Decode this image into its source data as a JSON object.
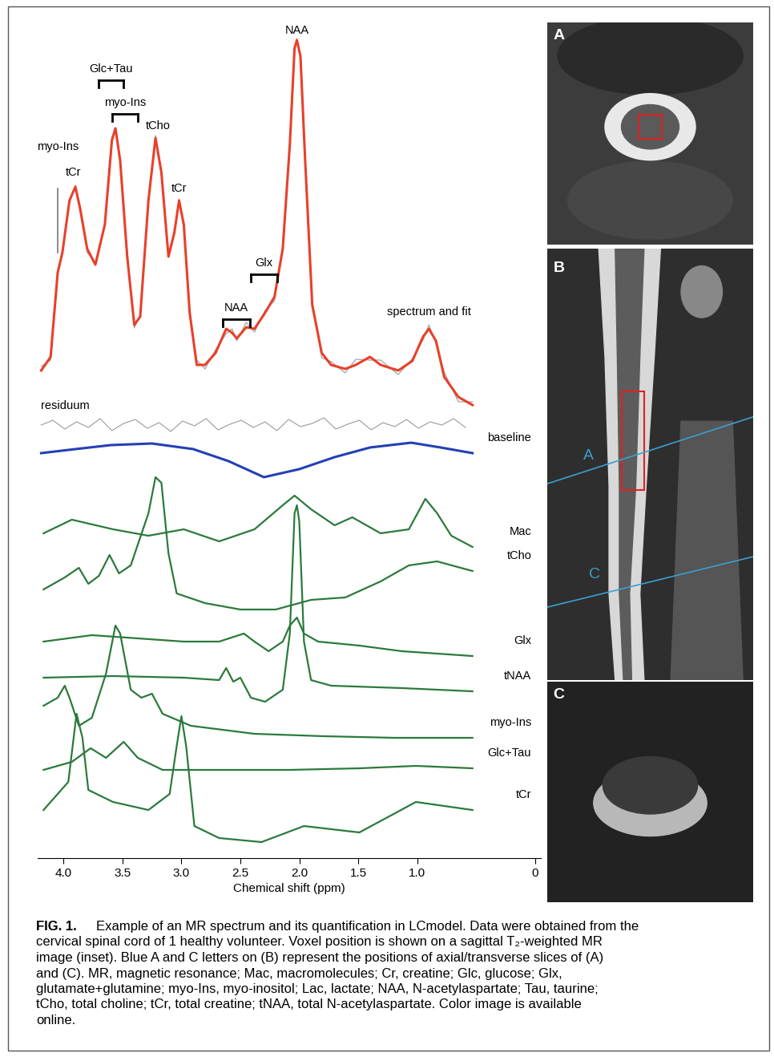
{
  "chart_data": {
    "type": "line",
    "xlabel": "Chemical shift (ppm)",
    "xlim": [
      4.22,
      -0.05
    ],
    "xticks": [
      {
        "value": 4,
        "label": "4.0"
      },
      3.5,
      {
        "value": 3,
        "label": "3.0"
      },
      2.5,
      {
        "value": 2,
        "label": "2.0"
      },
      1.5,
      {
        "value": 1,
        "label": "1.0"
      },
      0
    ],
    "ylim": [
      0,
      1050
    ],
    "tick_labels": "x",
    "spectrum_and_fit": {
      "name": "spectrum and fit",
      "colors": [
        "#9a9a9a",
        "#e8402a"
      ],
      "x": [
        4.19,
        4.11,
        4.05,
        4.01,
        3.95,
        3.9,
        3.86,
        3.8,
        3.73,
        3.65,
        3.59,
        3.56,
        3.52,
        3.46,
        3.4,
        3.35,
        3.28,
        3.22,
        3.17,
        3.11,
        3.06,
        3.02,
        2.98,
        2.93,
        2.87,
        2.8,
        2.71,
        2.62,
        2.57,
        2.53,
        2.45,
        2.38,
        2.29,
        2.21,
        2.14,
        2.08,
        2.04,
        2.02,
        1.99,
        1.95,
        1.89,
        1.81,
        1.73,
        1.61,
        1.52,
        1.4,
        1.31,
        1.16,
        1.04,
        0.95,
        0.9,
        0.84,
        0.77,
        0.65,
        0.53
      ],
      "spectrum": [
        613,
        621,
        733,
        755,
        817,
        839,
        814,
        755,
        743,
        788,
        899,
        907,
        872,
        755,
        661,
        678,
        818,
        901,
        851,
        755,
        777,
        822,
        786,
        683,
        621,
        610,
        634,
        654,
        660,
        645,
        668,
        656,
        683,
        695,
        762,
        894,
        1007,
        1022,
        996,
        873,
        695,
        624,
        619,
        605,
        622,
        621,
        621,
        603,
        623,
        646,
        665,
        642,
        606,
        569,
        569
      ],
      "fit": [
        608,
        625,
        730,
        755,
        820,
        837,
        810,
        760,
        740,
        790,
        895,
        910,
        870,
        750,
        665,
        675,
        820,
        898,
        855,
        750,
        780,
        820,
        790,
        680,
        615,
        615,
        630,
        660,
        655,
        648,
        662,
        660,
        680,
        700,
        760,
        890,
        1010,
        1020,
        1000,
        870,
        690,
        630,
        615,
        610,
        615,
        625,
        615,
        608,
        620,
        650,
        660,
        645,
        600,
        575,
        565
      ]
    },
    "residuum": {
      "name": "residuum",
      "color": "#9a9a9a",
      "x": [
        4.19,
        4.09,
        3.99,
        3.89,
        3.79,
        3.69,
        3.59,
        3.49,
        3.39,
        3.29,
        3.19,
        3.09,
        2.99,
        2.89,
        2.79,
        2.69,
        2.59,
        2.49,
        2.39,
        2.29,
        2.19,
        2.09,
        1.99,
        1.89,
        1.79,
        1.69,
        1.59,
        1.49,
        1.39,
        1.29,
        1.19,
        1.09,
        0.99,
        0.89,
        0.79,
        0.69,
        0.59
      ],
      "values": [
        540,
        546,
        535,
        544,
        537,
        548,
        533,
        542,
        547,
        536,
        543,
        532,
        545,
        539,
        548,
        534,
        541,
        546,
        537,
        544,
        533,
        547,
        538,
        542,
        549,
        535,
        541,
        546,
        534,
        543,
        538,
        547,
        536,
        544,
        540,
        548,
        537
      ]
    },
    "series": [
      {
        "name": "baseline",
        "color": "#2340b5",
        "x": [
          4.19,
          3.9,
          3.6,
          3.25,
          2.9,
          2.6,
          2.3,
          2.0,
          1.7,
          1.4,
          1.05,
          0.8,
          0.53
        ],
        "values": [
          505,
          510,
          515,
          517,
          510,
          495,
          475,
          485,
          500,
          512,
          518,
          512,
          505
        ]
      },
      {
        "name": "Mac",
        "color": "#2b7a3b",
        "x": [
          4.17,
          3.93,
          3.58,
          3.28,
          2.98,
          2.68,
          2.38,
          2.14,
          2.04,
          1.9,
          1.7,
          1.55,
          1.31,
          1.07,
          0.93,
          0.83,
          0.71,
          0.53
        ],
        "values": [
          405,
          422,
          410,
          402,
          410,
          395,
          410,
          440,
          452,
          435,
          415,
          425,
          405,
          410,
          448,
          430,
          402,
          388
        ]
      },
      {
        "name": "tCho",
        "color": "#2b7a3b",
        "x": [
          4.17,
          3.99,
          3.87,
          3.79,
          3.7,
          3.61,
          3.53,
          3.43,
          3.28,
          3.22,
          3.17,
          3.11,
          3.04,
          2.8,
          2.5,
          2.2,
          1.9,
          1.61,
          1.31,
          1.07,
          0.83,
          0.53
        ],
        "values": [
          335,
          350,
          362,
          342,
          352,
          378,
          355,
          365,
          430,
          475,
          468,
          380,
          330,
          318,
          310,
          310,
          322,
          325,
          345,
          365,
          370,
          358
        ]
      },
      {
        "name": "Glx",
        "color": "#2b7a3b",
        "x": [
          4.17,
          3.76,
          2.98,
          2.68,
          2.47,
          2.38,
          2.26,
          2.14,
          2.08,
          2.02,
          1.96,
          1.84,
          1.49,
          1.13,
          0.53
        ],
        "values": [
          270,
          278,
          270,
          270,
          280,
          270,
          258,
          270,
          290,
          300,
          280,
          270,
          265,
          258,
          252
        ]
      },
      {
        "name": "tNAA",
        "color": "#2b7a3b",
        "x": [
          4.17,
          3.58,
          2.98,
          2.68,
          2.62,
          2.56,
          2.5,
          2.41,
          2.29,
          2.14,
          2.08,
          2.04,
          2.02,
          2.0,
          1.96,
          1.9,
          1.73,
          1.13,
          0.53
        ],
        "values": [
          225,
          227,
          225,
          222,
          237,
          220,
          225,
          200,
          195,
          210,
          280,
          430,
          440,
          420,
          270,
          222,
          215,
          212,
          208
        ]
      },
      {
        "name": "myo-Ins",
        "color": "#2b7a3b",
        "x": [
          4.17,
          4.05,
          3.99,
          3.95,
          3.87,
          3.76,
          3.64,
          3.56,
          3.52,
          3.43,
          3.34,
          3.25,
          3.16,
          2.92,
          2.38,
          1.79,
          1.19,
          0.53
        ],
        "values": [
          190,
          200,
          215,
          200,
          165,
          175,
          230,
          290,
          280,
          210,
          200,
          205,
          180,
          165,
          155,
          152,
          150,
          150
        ]
      },
      {
        "name": "Glc+Tau",
        "color": "#2b7a3b",
        "x": [
          4.17,
          3.93,
          3.77,
          3.64,
          3.49,
          3.37,
          3.16,
          2.68,
          2.08,
          1.49,
          1.01,
          0.53
        ],
        "values": [
          110,
          120,
          137,
          125,
          145,
          125,
          110,
          110,
          110,
          112,
          115,
          112
        ]
      },
      {
        "name": "tCr",
        "color": "#2b7a3b",
        "x": [
          4.17,
          3.96,
          3.89,
          3.84,
          3.79,
          3.58,
          3.28,
          3.1,
          3.04,
          3.0,
          2.96,
          2.89,
          2.68,
          2.32,
          1.96,
          1.49,
          1.01,
          0.53
        ],
        "values": [
          60,
          95,
          180,
          150,
          85,
          70,
          60,
          80,
          140,
          177,
          140,
          40,
          25,
          20,
          40,
          32,
          70,
          60
        ]
      }
    ],
    "annotations": [
      {
        "text": "myo-Ins",
        "ppm": 4.05,
        "line_style": "solid"
      },
      {
        "text": "tCr",
        "ppm": 3.92
      },
      {
        "text": "Glc+Tau",
        "ppm_range": [
          3.7,
          3.49
        ]
      },
      {
        "text": "myo-Ins",
        "ppm_range": [
          3.59,
          3.37
        ]
      },
      {
        "text": "tCho",
        "ppm": 3.2
      },
      {
        "text": "tCr",
        "ppm": 3.02
      },
      {
        "text": "NAA",
        "ppm": 2.02
      },
      {
        "text": "Glx",
        "ppm_range": [
          2.41,
          2.19
        ]
      },
      {
        "text": "NAA",
        "ppm_range": [
          2.65,
          2.42
        ]
      }
    ]
  },
  "images": {
    "panels": [
      "A",
      "B",
      "C"
    ],
    "slice_lines": [
      "A",
      "C"
    ]
  },
  "caption": {
    "label": "FIG. 1.",
    "text": "Example of an MR spectrum and its quantification in LCmodel. Data were obtained from the cervical spinal cord of 1 healthy volunteer. Voxel position is shown on a sagittal T₂-weighted MR image (inset). Blue A and C letters on (B) represent the positions of axial/transverse slices of (A) and (C). MR, magnetic resonance; Mac, macromolecules; Cr, creatine; Glc, glucose; Glx, glutamate+glutamine; myo-Ins, myo-inositol; Lac, lactate; NAA, N-acetylaspartate; Tau, taurine; tCho, total choline; tCr, total creatine; tNAA, total N-acetylaspartate. Color image is available online."
  }
}
